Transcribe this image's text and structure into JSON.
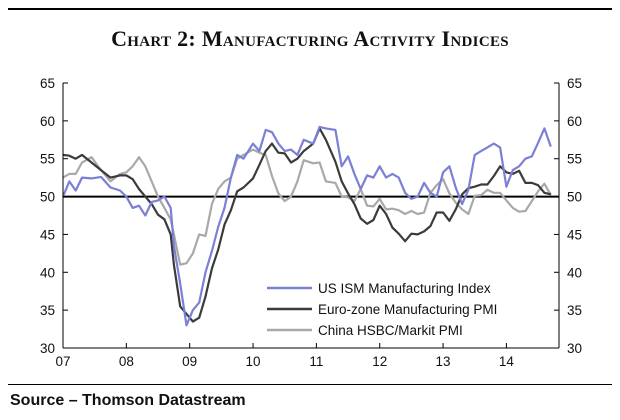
{
  "title": "Chart 2: Manufacturing Activity Indices",
  "source": "Source – Thomson Datastream",
  "colors": {
    "us": "#7b7fd6",
    "euro": "#3b3b3b",
    "china": "#a9a9a9"
  },
  "chart_data": {
    "type": "line",
    "title": "Chart 2: Manufacturing Activity Indices",
    "xlabel": "",
    "ylabel": "",
    "xlim": [
      2007.0,
      2014.83
    ],
    "ylim": [
      30,
      65
    ],
    "y_ticks": [
      30,
      35,
      40,
      45,
      50,
      55,
      60,
      65
    ],
    "x_ticks": [
      {
        "label": "07",
        "x": 2007.0
      },
      {
        "label": "08",
        "x": 2008.0
      },
      {
        "label": "09",
        "x": 2009.0
      },
      {
        "label": "10",
        "x": 2010.0
      },
      {
        "label": "11",
        "x": 2011.0
      },
      {
        "label": "12",
        "x": 2012.0
      },
      {
        "label": "13",
        "x": 2013.0
      },
      {
        "label": "14",
        "x": 2014.0
      }
    ],
    "dual_y_axis": true,
    "reference_line": 50,
    "grid": false,
    "legend_position": "bottom-right",
    "series": [
      {
        "name": "US ISM Manufacturing Index",
        "color": "#7b7fd6",
        "points": [
          [
            2007.0,
            50.0
          ],
          [
            2007.1,
            52.0
          ],
          [
            2007.2,
            50.8
          ],
          [
            2007.3,
            52.5
          ],
          [
            2007.45,
            52.4
          ],
          [
            2007.6,
            52.6
          ],
          [
            2007.75,
            51.2
          ],
          [
            2007.9,
            50.8
          ],
          [
            2008.0,
            50.0
          ],
          [
            2008.1,
            48.5
          ],
          [
            2008.2,
            48.8
          ],
          [
            2008.3,
            47.5
          ],
          [
            2008.4,
            49.3
          ],
          [
            2008.5,
            49.5
          ],
          [
            2008.6,
            50.0
          ],
          [
            2008.7,
            48.5
          ],
          [
            2008.75,
            43.5
          ],
          [
            2008.85,
            38.5
          ],
          [
            2008.95,
            33.0
          ],
          [
            2009.05,
            35.0
          ],
          [
            2009.15,
            36.0
          ],
          [
            2009.25,
            40.0
          ],
          [
            2009.35,
            42.8
          ],
          [
            2009.45,
            46.0
          ],
          [
            2009.55,
            48.5
          ],
          [
            2009.65,
            52.5
          ],
          [
            2009.75,
            55.5
          ],
          [
            2009.85,
            55.0
          ],
          [
            2010.0,
            57.0
          ],
          [
            2010.1,
            56.0
          ],
          [
            2010.2,
            58.8
          ],
          [
            2010.3,
            58.5
          ],
          [
            2010.4,
            57.0
          ],
          [
            2010.5,
            56.0
          ],
          [
            2010.6,
            56.2
          ],
          [
            2010.7,
            55.5
          ],
          [
            2010.8,
            57.5
          ],
          [
            2010.95,
            57.0
          ],
          [
            2011.05,
            59.2
          ],
          [
            2011.15,
            59.0
          ],
          [
            2011.3,
            58.8
          ],
          [
            2011.4,
            54.0
          ],
          [
            2011.5,
            55.3
          ],
          [
            2011.6,
            53.0
          ],
          [
            2011.7,
            51.0
          ],
          [
            2011.8,
            52.8
          ],
          [
            2011.9,
            52.5
          ],
          [
            2012.0,
            54.0
          ],
          [
            2012.1,
            52.5
          ],
          [
            2012.2,
            53.0
          ],
          [
            2012.3,
            52.5
          ],
          [
            2012.4,
            50.5
          ],
          [
            2012.5,
            49.7
          ],
          [
            2012.6,
            50.0
          ],
          [
            2012.7,
            51.8
          ],
          [
            2012.8,
            50.5
          ],
          [
            2012.9,
            50.0
          ],
          [
            2013.0,
            53.2
          ],
          [
            2013.1,
            54.0
          ],
          [
            2013.2,
            51.2
          ],
          [
            2013.3,
            49.0
          ],
          [
            2013.4,
            50.9
          ],
          [
            2013.5,
            55.5
          ],
          [
            2013.6,
            56.0
          ],
          [
            2013.7,
            56.5
          ],
          [
            2013.8,
            57.0
          ],
          [
            2013.9,
            56.5
          ],
          [
            2014.0,
            51.3
          ],
          [
            2014.1,
            53.5
          ],
          [
            2014.2,
            54.0
          ],
          [
            2014.3,
            55.0
          ],
          [
            2014.4,
            55.3
          ],
          [
            2014.5,
            57.1
          ],
          [
            2014.6,
            59.0
          ],
          [
            2014.7,
            56.6
          ]
        ]
      },
      {
        "name": "Euro-zone Manufacturing PMI",
        "color": "#3b3b3b",
        "points": [
          [
            2007.0,
            55.5
          ],
          [
            2007.1,
            55.4
          ],
          [
            2007.2,
            55.0
          ],
          [
            2007.3,
            55.5
          ],
          [
            2007.45,
            54.5
          ],
          [
            2007.6,
            53.5
          ],
          [
            2007.75,
            52.5
          ],
          [
            2007.9,
            52.8
          ],
          [
            2008.0,
            52.8
          ],
          [
            2008.1,
            52.3
          ],
          [
            2008.2,
            51.0
          ],
          [
            2008.3,
            50.0
          ],
          [
            2008.4,
            49.0
          ],
          [
            2008.5,
            47.6
          ],
          [
            2008.6,
            47.0
          ],
          [
            2008.7,
            45.0
          ],
          [
            2008.75,
            41.0
          ],
          [
            2008.85,
            35.5
          ],
          [
            2008.95,
            34.5
          ],
          [
            2009.05,
            33.5
          ],
          [
            2009.15,
            34.0
          ],
          [
            2009.25,
            36.8
          ],
          [
            2009.35,
            40.5
          ],
          [
            2009.45,
            43.0
          ],
          [
            2009.55,
            46.3
          ],
          [
            2009.65,
            48.2
          ],
          [
            2009.75,
            50.7
          ],
          [
            2009.85,
            51.2
          ],
          [
            2010.0,
            52.4
          ],
          [
            2010.1,
            54.2
          ],
          [
            2010.2,
            56.0
          ],
          [
            2010.3,
            57.0
          ],
          [
            2010.4,
            55.8
          ],
          [
            2010.5,
            55.7
          ],
          [
            2010.6,
            54.5
          ],
          [
            2010.7,
            55.0
          ],
          [
            2010.8,
            56.0
          ],
          [
            2010.95,
            57.0
          ],
          [
            2011.05,
            59.0
          ],
          [
            2011.15,
            57.5
          ],
          [
            2011.3,
            54.6
          ],
          [
            2011.4,
            52.0
          ],
          [
            2011.5,
            50.4
          ],
          [
            2011.6,
            49.0
          ],
          [
            2011.7,
            47.1
          ],
          [
            2011.8,
            46.4
          ],
          [
            2011.9,
            46.9
          ],
          [
            2012.0,
            48.8
          ],
          [
            2012.1,
            47.7
          ],
          [
            2012.2,
            45.9
          ],
          [
            2012.3,
            45.1
          ],
          [
            2012.4,
            44.1
          ],
          [
            2012.5,
            45.1
          ],
          [
            2012.6,
            45.0
          ],
          [
            2012.7,
            45.4
          ],
          [
            2012.8,
            46.1
          ],
          [
            2012.9,
            47.9
          ],
          [
            2013.0,
            47.9
          ],
          [
            2013.1,
            46.8
          ],
          [
            2013.2,
            48.3
          ],
          [
            2013.3,
            50.3
          ],
          [
            2013.4,
            51.1
          ],
          [
            2013.5,
            51.3
          ],
          [
            2013.6,
            51.6
          ],
          [
            2013.7,
            51.6
          ],
          [
            2013.8,
            52.7
          ],
          [
            2013.9,
            54.0
          ],
          [
            2014.0,
            53.2
          ],
          [
            2014.1,
            53.0
          ],
          [
            2014.2,
            53.4
          ],
          [
            2014.3,
            51.8
          ],
          [
            2014.4,
            51.8
          ],
          [
            2014.5,
            51.5
          ],
          [
            2014.6,
            50.5
          ],
          [
            2014.7,
            50.3
          ]
        ]
      },
      {
        "name": "China HSBC/Markit PMI",
        "color": "#a9a9a9",
        "points": [
          [
            2007.0,
            52.5
          ],
          [
            2007.1,
            53.0
          ],
          [
            2007.2,
            53.0
          ],
          [
            2007.3,
            54.5
          ],
          [
            2007.45,
            55.2
          ],
          [
            2007.6,
            53.5
          ],
          [
            2007.75,
            52.0
          ],
          [
            2007.9,
            53.0
          ],
          [
            2008.0,
            53.2
          ],
          [
            2008.1,
            54.0
          ],
          [
            2008.2,
            55.2
          ],
          [
            2008.3,
            54.0
          ],
          [
            2008.4,
            52.0
          ],
          [
            2008.5,
            50.0
          ],
          [
            2008.6,
            48.5
          ],
          [
            2008.7,
            47.0
          ],
          [
            2008.75,
            45.0
          ],
          [
            2008.85,
            41.0
          ],
          [
            2008.95,
            41.2
          ],
          [
            2009.05,
            42.5
          ],
          [
            2009.15,
            45.0
          ],
          [
            2009.25,
            44.8
          ],
          [
            2009.35,
            49.0
          ],
          [
            2009.45,
            51.0
          ],
          [
            2009.55,
            52.0
          ],
          [
            2009.65,
            52.5
          ],
          [
            2009.75,
            55.0
          ],
          [
            2009.85,
            55.5
          ],
          [
            2010.0,
            56.2
          ],
          [
            2010.1,
            55.8
          ],
          [
            2010.2,
            55.5
          ],
          [
            2010.3,
            52.7
          ],
          [
            2010.4,
            50.4
          ],
          [
            2010.5,
            49.4
          ],
          [
            2010.6,
            50.0
          ],
          [
            2010.7,
            52.0
          ],
          [
            2010.8,
            54.8
          ],
          [
            2010.95,
            54.4
          ],
          [
            2011.05,
            54.5
          ],
          [
            2011.15,
            52.0
          ],
          [
            2011.3,
            51.8
          ],
          [
            2011.4,
            50.0
          ],
          [
            2011.5,
            49.9
          ],
          [
            2011.6,
            49.4
          ],
          [
            2011.7,
            51.0
          ],
          [
            2011.8,
            48.8
          ],
          [
            2011.9,
            48.7
          ],
          [
            2012.0,
            49.7
          ],
          [
            2012.1,
            48.3
          ],
          [
            2012.2,
            48.4
          ],
          [
            2012.3,
            48.2
          ],
          [
            2012.4,
            47.7
          ],
          [
            2012.5,
            48.1
          ],
          [
            2012.6,
            47.7
          ],
          [
            2012.7,
            47.9
          ],
          [
            2012.8,
            50.5
          ],
          [
            2012.9,
            51.5
          ],
          [
            2013.0,
            52.3
          ],
          [
            2013.1,
            50.4
          ],
          [
            2013.2,
            49.2
          ],
          [
            2013.3,
            48.3
          ],
          [
            2013.4,
            47.7
          ],
          [
            2013.5,
            50.1
          ],
          [
            2013.6,
            50.2
          ],
          [
            2013.7,
            50.9
          ],
          [
            2013.8,
            50.5
          ],
          [
            2013.9,
            50.5
          ],
          [
            2014.0,
            49.5
          ],
          [
            2014.1,
            48.5
          ],
          [
            2014.2,
            48.0
          ],
          [
            2014.3,
            48.1
          ],
          [
            2014.4,
            49.4
          ],
          [
            2014.5,
            50.7
          ],
          [
            2014.6,
            51.7
          ],
          [
            2014.7,
            50.2
          ]
        ]
      }
    ]
  }
}
